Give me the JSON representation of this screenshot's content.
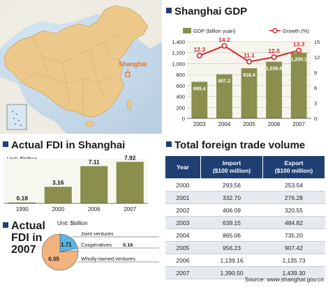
{
  "map": {
    "city_label": "Shanghai"
  },
  "gdp_panel": {
    "title": "Shanghai GDP"
  },
  "fdi_panel": {
    "title": "Actual FDI in Shanghai",
    "unit": "Unit: $billion"
  },
  "fdi2007_panel": {
    "title_line1": "Actual",
    "title_line2": "FDI in",
    "title_line3": "2007",
    "unit": "Unit: $billion"
  },
  "trade_panel": {
    "title": "Total foreign trade volume",
    "source": "Source: www.shanghai.gov.cn"
  },
  "colors": {
    "bar_olive": "#8b8f4d",
    "growth_line": "#d7262b",
    "header_navy": "#1f3f73",
    "pie_blue": "#5ab5e2",
    "pie_orange": "#f2b37e",
    "pie_white": "#ffffff"
  },
  "chart_data": [
    {
      "type": "bar",
      "title": "Shanghai GDP",
      "categories": [
        "2003",
        "2004",
        "2005",
        "2006",
        "2007"
      ],
      "series": [
        {
          "name": "GDP (billion yuan)",
          "values": [
            669.4,
            807.2,
            916.4,
            1036.6,
            1200.1
          ],
          "labels": [
            "669.4",
            "807.2",
            "916.4",
            "1,036.6",
            "1,200.1"
          ],
          "axis": "left"
        },
        {
          "name": "Growth (%)",
          "type": "line",
          "values": [
            12.3,
            14.2,
            11.1,
            12.0,
            13.3
          ],
          "labels": [
            "12.3",
            "14.2",
            "11.1",
            "12.0",
            "13.3"
          ],
          "axis": "right"
        }
      ],
      "ylim": [
        0,
        1400
      ],
      "yticks": [
        "0",
        "200",
        "400",
        "600",
        "800",
        "1,000",
        "1,200",
        "1,400"
      ],
      "y2lim": [
        0,
        15
      ],
      "y2ticks": [
        "0",
        "3",
        "6",
        "9",
        "12",
        "15"
      ],
      "legend": "top"
    },
    {
      "type": "bar",
      "title": "Actual FDI in Shanghai",
      "categories": [
        "1990",
        "2000",
        "2006",
        "2007"
      ],
      "values": [
        0.18,
        3.16,
        7.11,
        7.92
      ],
      "labels": [
        "0.18",
        "3.16",
        "7.11",
        "7.92"
      ],
      "ylim": [
        0,
        8.5
      ]
    },
    {
      "type": "pie",
      "title": "Actual FDI in 2007",
      "slices": [
        {
          "name": "Joint ventures",
          "value": 1.71,
          "label": "1.71",
          "color": "#5ab5e2"
        },
        {
          "name": "Cooperatives",
          "value": 0.16,
          "label": "0.16",
          "color": "#ffffff"
        },
        {
          "name": "Wholly-owned ventures",
          "value": 6.05,
          "label": "6.05",
          "color": "#f2b37e"
        }
      ]
    },
    {
      "type": "table",
      "title": "Total foreign trade volume",
      "columns": [
        "Year",
        "Import ($100 million)",
        "Export ($100 million)"
      ],
      "header": {
        "year": "Year",
        "import_l1": "Import",
        "import_l2": "($100 million)",
        "export_l1": "Export",
        "export_l2": "($100 million)"
      },
      "rows": [
        [
          "2000",
          "293.56",
          "253.54"
        ],
        [
          "2001",
          "332.70",
          "276.28"
        ],
        [
          "2002",
          "406.09",
          "320.55"
        ],
        [
          "2003",
          "639.15",
          "484.82"
        ],
        [
          "2004",
          "865.06",
          "735.20"
        ],
        [
          "2005",
          "956.23",
          "907.42"
        ],
        [
          "2006",
          "1,139.16",
          "1,135.73"
        ],
        [
          "2007",
          "1,390.50",
          "1,439.30"
        ]
      ]
    }
  ]
}
